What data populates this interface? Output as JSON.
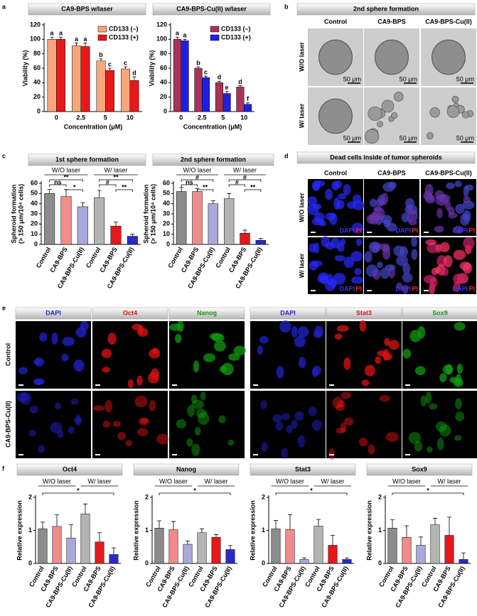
{
  "panel_labels": [
    "a",
    "b",
    "c",
    "d",
    "e",
    "f"
  ],
  "chart_data": [
    {
      "type": "bar",
      "title": "CA9-BPS w/laser",
      "categories": [
        "0",
        "2.5",
        "5",
        "10"
      ],
      "series": [
        {
          "name": "CD133 (–)",
          "color": "#f7a77a",
          "values": [
            100,
            91,
            70,
            59
          ],
          "errors": [
            3,
            4,
            3,
            3
          ],
          "letters": [
            "a",
            "a",
            "b",
            "c"
          ]
        },
        {
          "name": "CD133 (+)",
          "color": "#e5191c",
          "values": [
            100,
            90,
            57,
            43
          ],
          "errors": [
            3,
            5,
            3,
            5
          ],
          "letters": [
            "a",
            "a",
            "c",
            "d"
          ]
        }
      ],
      "xlabel": "Concentration (μM)",
      "ylabel": "Viability (%)",
      "ylim": [
        0,
        120
      ],
      "yticks": [
        0,
        20,
        40,
        60,
        80,
        100,
        120
      ],
      "legend": "upper right"
    },
    {
      "type": "bar",
      "title": "CA9-BPS-Cu(II) w/laser",
      "categories": [
        "0",
        "2.5",
        "5",
        "10"
      ],
      "series": [
        {
          "name": "CD133 (–)",
          "color": "#a8325a",
          "values": [
            100,
            60,
            40,
            34
          ],
          "errors": [
            3,
            2,
            2,
            2
          ],
          "letters": [
            "a",
            "b",
            "d",
            "d"
          ]
        },
        {
          "name": "CD133 (+)",
          "color": "#1f1fe0",
          "values": [
            98,
            47,
            25,
            10
          ],
          "errors": [
            2,
            2,
            3,
            2
          ],
          "letters": [
            "a",
            "c",
            "e",
            "f"
          ]
        }
      ],
      "xlabel": "Concentration (μM)",
      "ylabel": "Viability (%)",
      "ylim": [
        0,
        120
      ],
      "yticks": [
        0,
        20,
        40,
        60,
        80,
        100,
        120
      ],
      "legend": "upper right"
    },
    {
      "type": "bar",
      "title": "1st sphere formation",
      "categories": [
        "Control",
        "CA9-BPS",
        "CA9-BPS-Cu(II)",
        "Control",
        "CA9-BPS",
        "CA9-BPS-Cu(II)"
      ],
      "values": [
        50,
        47,
        37,
        46,
        18,
        8
      ],
      "errors": [
        4,
        7,
        4,
        7,
        4,
        2
      ],
      "colors": [
        "#8c8c8c",
        "#f08c8c",
        "#a9a9dc",
        "#b4b4b4",
        "#e5191c",
        "#2a2ac8"
      ],
      "groups": [
        "W/O laser",
        "W/ laser"
      ],
      "comparisons": [
        {
          "label": "**",
          "between": [
            0,
            2
          ]
        },
        {
          "label": "ns",
          "between": [
            0,
            1
          ]
        },
        {
          "label": "*",
          "between": [
            1,
            2
          ]
        },
        {
          "label": "**",
          "between": [
            3,
            5
          ]
        },
        {
          "label": "#",
          "between": [
            3,
            4
          ]
        },
        {
          "label": "**",
          "between": [
            4,
            5
          ]
        }
      ],
      "ylabel": [
        "Spheroid formation",
        "(> 150 μm/10⁴ cells)"
      ],
      "ylim": [
        0,
        60
      ],
      "yticks": [
        0,
        10,
        20,
        30,
        40,
        50,
        60
      ]
    },
    {
      "type": "bar",
      "title": "2nd sphere formation",
      "categories": [
        "Control",
        "CA9-BPS",
        "CA9-BPS-Cu(II)",
        "Control",
        "CA9-BPS",
        "CA9-BPS-Cu(II)"
      ],
      "values": [
        52,
        52,
        40,
        45,
        11,
        4
      ],
      "errors": [
        4,
        3,
        3,
        5,
        3,
        2
      ],
      "colors": [
        "#8c8c8c",
        "#f08c8c",
        "#a9a9dc",
        "#b4b4b4",
        "#e5191c",
        "#2a2ac8"
      ],
      "groups": [
        "W/O laser",
        "W/ laser"
      ],
      "comparisons": [
        {
          "label": "#",
          "between": [
            0,
            2
          ]
        },
        {
          "label": "ns",
          "between": [
            0,
            1
          ]
        },
        {
          "label": "**",
          "between": [
            1,
            2
          ]
        },
        {
          "label": "#",
          "between": [
            3,
            5
          ]
        },
        {
          "label": "#",
          "between": [
            3,
            4
          ]
        },
        {
          "label": "**",
          "between": [
            4,
            5
          ]
        }
      ],
      "ylabel": [
        "Spheroid formation",
        "(> 150 μm/10⁴ cells)"
      ],
      "ylim": [
        0,
        60
      ],
      "yticks": [
        0,
        10,
        20,
        30,
        40,
        50,
        60
      ]
    },
    {
      "type": "bar",
      "title": "Oct4",
      "categories": [
        "Control",
        "CA9-BPS",
        "CA9-BPS-Cu(II)",
        "Control",
        "CA9-BPS",
        "CA9-BPS-Cu(II)"
      ],
      "values": [
        1.05,
        1.12,
        0.77,
        1.5,
        0.65,
        0.27
      ],
      "errors": [
        0.2,
        0.35,
        0.4,
        0.3,
        0.28,
        0.2
      ],
      "colors": [
        "#8c8c8c",
        "#f08c8c",
        "#a9a9dc",
        "#b4b4b4",
        "#e5191c",
        "#2a2ac8"
      ],
      "groups": [
        "W/O laser",
        "W/ laser"
      ],
      "comparisons": [
        {
          "label": "*",
          "between": [
            0,
            5
          ]
        }
      ],
      "ylabel": "Relative expression",
      "ylim": [
        0,
        2
      ],
      "yticks": [
        0,
        1,
        2
      ]
    },
    {
      "type": "bar",
      "title": "Nanog",
      "categories": [
        "Control",
        "CA9-BPS",
        "CA9-BPS-Cu(II)",
        "Control",
        "CA9-BPS",
        "CA9-BPS-Cu(II)"
      ],
      "values": [
        1.07,
        1.02,
        0.58,
        0.93,
        0.79,
        0.42
      ],
      "errors": [
        0.22,
        0.25,
        0.1,
        0.12,
        0.08,
        0.12
      ],
      "colors": [
        "#8c8c8c",
        "#f08c8c",
        "#a9a9dc",
        "#b4b4b4",
        "#e5191c",
        "#2a2ac8"
      ],
      "groups": [
        "W/O laser",
        "W/ laser"
      ],
      "comparisons": [
        {
          "label": "*",
          "between": [
            0,
            5
          ]
        }
      ],
      "ylabel": "Relative expression",
      "ylim": [
        0,
        2
      ],
      "yticks": [
        0,
        1,
        2
      ]
    },
    {
      "type": "bar",
      "title": "Stat3",
      "categories": [
        "Control",
        "CA9-BPS",
        "CA9-BPS-Cu(II)",
        "Control",
        "CA9-BPS",
        "CA9-BPS-Cu(II)"
      ],
      "values": [
        1.05,
        1.03,
        0.12,
        1.13,
        0.55,
        0.12
      ],
      "errors": [
        0.25,
        0.45,
        0.05,
        0.2,
        0.3,
        0.05
      ],
      "colors": [
        "#8c8c8c",
        "#f08c8c",
        "#a9a9dc",
        "#b4b4b4",
        "#e5191c",
        "#2a2ac8"
      ],
      "groups": [
        "W/O laser",
        "W/ laser"
      ],
      "comparisons": [
        {
          "label": "*",
          "between": [
            0,
            5
          ]
        }
      ],
      "ylabel": "Relative expression",
      "ylim": [
        0,
        2
      ],
      "yticks": [
        0,
        1,
        2
      ]
    },
    {
      "type": "bar",
      "title": "Sox9",
      "categories": [
        "Control",
        "CA9-BPS",
        "CA9-BPS-Cu(II)",
        "Control",
        "CA9-BPS",
        "CA9-BPS-Cu(II)"
      ],
      "values": [
        1.07,
        0.79,
        0.55,
        1.17,
        0.85,
        0.12
      ],
      "errors": [
        0.25,
        0.35,
        0.25,
        0.2,
        0.55,
        0.2
      ],
      "colors": [
        "#8c8c8c",
        "#f08c8c",
        "#a9a9dc",
        "#b4b4b4",
        "#e5191c",
        "#2a2ac8"
      ],
      "groups": [
        "W/O laser",
        "W/ laser"
      ],
      "comparisons": [
        {
          "label": "*",
          "between": [
            0,
            5
          ]
        }
      ],
      "ylabel": "Relative expression",
      "ylim": [
        0,
        2
      ],
      "yticks": [
        0,
        1,
        2
      ]
    }
  ],
  "sphere_panel": {
    "title": "2nd sphere formation",
    "columns": [
      "Control",
      "CA9-BPS",
      "CA9-BPS-Cu(II)"
    ],
    "rows": [
      "W/O laser",
      "W/ laser"
    ],
    "scale_bar": "50 μm"
  },
  "dead_cell_panel": {
    "title": "Dead cells inside of tumor spheroids",
    "columns": [
      "Control",
      "CA9-BPS",
      "CA9-BPS-Cu(II)"
    ],
    "rows": [
      "W/O laser",
      "W/ laser"
    ],
    "stains": [
      "DAPI",
      "PI"
    ],
    "stain_colors": [
      "#3333ff",
      "#ff2222"
    ]
  },
  "stain_panel": {
    "columns": [
      "DAPI",
      "Oct4",
      "Nanog",
      "DAPI",
      "Stat3",
      "Sox9"
    ],
    "column_colors": [
      "#2222cc",
      "#dd1111",
      "#119911",
      "#2222cc",
      "#dd1111",
      "#119911"
    ],
    "rows": [
      "Control",
      "CA9-BPS-Cu(II)"
    ]
  }
}
